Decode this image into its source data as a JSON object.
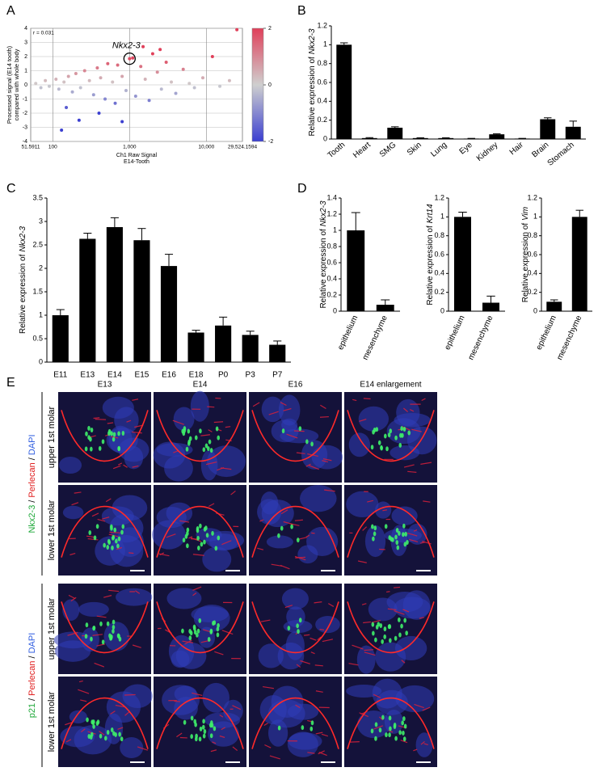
{
  "panel_labels": [
    "A",
    "B",
    "C",
    "D",
    "E"
  ],
  "chart_data": [
    {
      "type": "scatter",
      "y_label": [
        "Processed signal (E14 tooth)",
        "compared with whole body"
      ],
      "x_label": [
        "Ch1 Raw Signal",
        "E14-Tooth"
      ],
      "corner_text": "r = 0.031",
      "annotation": {
        "text": "Nkx2-3",
        "x": 1000,
        "y": 1.85
      },
      "x_log": true,
      "grid": true,
      "xlim": [
        51.5911,
        29524.1594
      ],
      "xticks": [
        51.5911,
        100,
        {
          "value": 1000,
          "label": "1,000"
        },
        {
          "value": 10000,
          "label": "10,000"
        },
        {
          "value": 29524.1594,
          "label": "29,524.1594"
        }
      ],
      "ylim": [
        -4,
        4
      ],
      "yticks": [
        4,
        3,
        2,
        1,
        0,
        -1,
        -2,
        -3,
        -4
      ],
      "colorbar": {
        "clim": [
          -2,
          2
        ],
        "ticks": [
          2,
          0,
          -2
        ],
        "colors": [
          "#3b3fd0",
          "#cfcfcf",
          "#e0405a"
        ]
      },
      "x": [
        60,
        70,
        80,
        90,
        110,
        120,
        140,
        160,
        180,
        200,
        230,
        260,
        300,
        340,
        380,
        420,
        480,
        520,
        600,
        650,
        700,
        800,
        900,
        1000,
        1100,
        1200,
        1400,
        1600,
        1800,
        2000,
        2300,
        2600,
        3000,
        3500,
        4000,
        5000,
        6000,
        7000,
        9000,
        12000,
        15000,
        20000,
        25000,
        150,
        400,
        220,
        800,
        130,
        1500,
        2500
      ],
      "y": [
        0.1,
        -0.2,
        0.3,
        -0.1,
        0.4,
        -0.3,
        0.2,
        0.6,
        -0.5,
        0.8,
        -0.2,
        1.0,
        0.3,
        -0.7,
        1.2,
        0.5,
        -1.0,
        1.5,
        0.2,
        -1.3,
        1.4,
        0.6,
        -0.4,
        1.85,
        1.9,
        -0.8,
        1.3,
        0.4,
        -1.1,
        2.2,
        0.9,
        -0.3,
        1.6,
        0.2,
        -0.6,
        1.1,
        0.1,
        -0.2,
        0.5,
        2.0,
        -0.1,
        0.3,
        3.9,
        -1.6,
        -2.0,
        -2.5,
        -2.6,
        -3.2,
        2.7,
        2.5
      ]
    },
    {
      "type": "bar",
      "y_label": "Relative expression of",
      "y_label_gene": "Nkx2-3",
      "color": "#000000",
      "categories": [
        "Tooth",
        "Heart",
        "SMG",
        "Skin",
        "Lung",
        "Eye",
        "Kidney",
        "Hair",
        "Brain",
        "Stomach"
      ],
      "values": [
        1.0,
        0.01,
        0.12,
        0.01,
        0.01,
        0.005,
        0.05,
        0.005,
        0.21,
        0.13
      ],
      "errors": [
        0.02,
        0.005,
        0.01,
        0.003,
        0.003,
        0.002,
        0.005,
        0.002,
        0.015,
        0.06
      ],
      "ylim": [
        0,
        1.2
      ],
      "yticks": [
        0,
        0.2,
        0.4,
        0.6,
        0.8,
        1,
        1.2
      ]
    },
    {
      "type": "bar",
      "y_label": "Relative expression of",
      "y_label_gene": "Nkx2-3",
      "color": "#000000",
      "categories": [
        "E11",
        "E13",
        "E14",
        "E15",
        "E16",
        "E18",
        "P0",
        "P3",
        "P7"
      ],
      "values": [
        1.0,
        2.63,
        2.88,
        2.6,
        2.05,
        0.63,
        0.78,
        0.58,
        0.37
      ],
      "errors": [
        0.12,
        0.12,
        0.2,
        0.25,
        0.25,
        0.05,
        0.18,
        0.08,
        0.08
      ],
      "ylim": [
        0,
        3.5
      ],
      "yticks": [
        0,
        0.5,
        1,
        1.5,
        2,
        2.5,
        3,
        3.5
      ]
    },
    {
      "type": "bar",
      "y_label": "Relative expression of",
      "y_label_gene": "Nkx2-3",
      "color": "#000000",
      "categories": [
        "epithelium",
        "mesenchyme"
      ],
      "values": [
        1.0,
        0.08
      ],
      "errors": [
        0.22,
        0.06
      ],
      "ylim": [
        0,
        1.4
      ],
      "yticks": [
        0,
        0.2,
        0.4,
        0.6,
        0.8,
        1,
        1.2,
        1.4
      ]
    },
    {
      "type": "bar",
      "y_label": "Relative expression of",
      "y_label_gene": "Krt14",
      "color": "#000000",
      "categories": [
        "epithelium",
        "mesenchyme"
      ],
      "values": [
        1.0,
        0.09
      ],
      "errors": [
        0.05,
        0.07
      ],
      "ylim": [
        0,
        1.2
      ],
      "yticks": [
        0,
        0.2,
        0.4,
        0.6,
        0.8,
        1,
        1.2
      ]
    },
    {
      "type": "bar",
      "y_label": "Relative expression of",
      "y_label_gene": "Vim",
      "color": "#000000",
      "categories": [
        "epithelium",
        "mesenchyme"
      ],
      "values": [
        0.1,
        1.0
      ],
      "errors": [
        0.02,
        0.07
      ],
      "ylim": [
        0,
        1.2
      ],
      "yticks": [
        0,
        0.2,
        0.4,
        0.6,
        0.8,
        1,
        1.2
      ]
    }
  ],
  "panel_e": {
    "columns": [
      "E13",
      "E14",
      "E16",
      "E14 enlargement"
    ],
    "rows": [
      "upper 1st molar",
      "lower 1st molar",
      "upper 1st molar",
      "lower 1st molar"
    ],
    "groups": [
      {
        "parts": [
          {
            "text": "Nkx2-3",
            "color": "#1fa83a"
          },
          {
            "text": "/",
            "color": "#000000"
          },
          {
            "text": "Perlecan",
            "color": "#e02020"
          },
          {
            "text": "/",
            "color": "#000000"
          },
          {
            "text": "DAPI",
            "color": "#2f5de0"
          }
        ]
      },
      {
        "parts": [
          {
            "text": "p21",
            "color": "#1fa83a"
          },
          {
            "text": "/",
            "color": "#000000"
          },
          {
            "text": "Perlecan",
            "color": "#e02020"
          },
          {
            "text": "/",
            "color": "#000000"
          },
          {
            "text": "DAPI",
            "color": "#2f5de0"
          }
        ]
      }
    ]
  }
}
